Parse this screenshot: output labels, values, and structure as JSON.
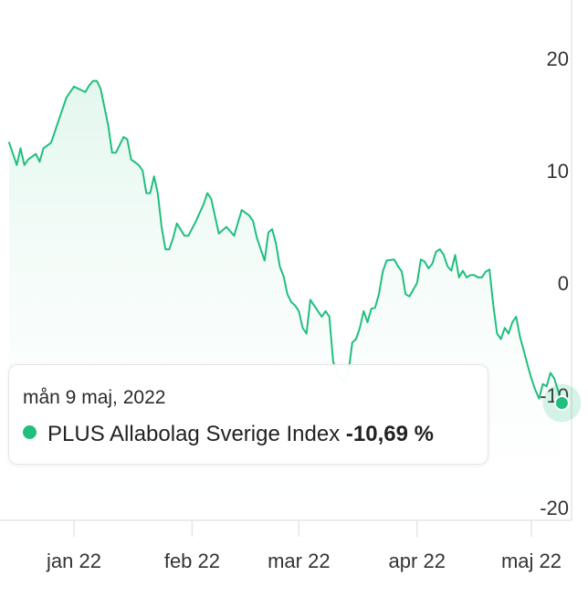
{
  "colors": {
    "line": "#20bf7e",
    "area_top": "#e3f7ee",
    "grid": "#e6e6e6",
    "axis_text": "#333333"
  },
  "tooltip": {
    "date": "mån 9 maj, 2022",
    "series_name": "PLUS Allabolag Sverige Index",
    "value": "-10,69 %"
  },
  "chart_data": {
    "type": "area",
    "ylim": [
      -20,
      20
    ],
    "y_ticks": [
      {
        "value": 20,
        "label": "20"
      },
      {
        "value": 10,
        "label": "10"
      },
      {
        "value": 0,
        "label": "0"
      },
      {
        "value": -10,
        "label": "-10"
      },
      {
        "value": -20,
        "label": "-20"
      }
    ],
    "x_ticks": [
      {
        "date": "2022-01-01",
        "label": "jan 22"
      },
      {
        "date": "2022-02-01",
        "label": "feb 22"
      },
      {
        "date": "2022-03-01",
        "label": "mar 22"
      },
      {
        "date": "2022-04-01",
        "label": "apr 22"
      },
      {
        "date": "2022-05-01",
        "label": "maj 22"
      }
    ],
    "series": [
      {
        "name": "PLUS Allabolag Sverige Index",
        "points": [
          [
            "2021-12-15",
            12.5
          ],
          [
            "2021-12-17",
            10.5
          ],
          [
            "2021-12-18",
            12.0
          ],
          [
            "2021-12-19",
            10.5
          ],
          [
            "2021-12-20",
            11.0
          ],
          [
            "2021-12-22",
            11.5
          ],
          [
            "2021-12-23",
            10.8
          ],
          [
            "2021-12-24",
            12.0
          ],
          [
            "2021-12-26",
            12.5
          ],
          [
            "2021-12-28",
            14.5
          ],
          [
            "2021-12-30",
            16.5
          ],
          [
            "2022-01-01",
            17.5
          ],
          [
            "2022-01-04",
            17.0
          ],
          [
            "2022-01-05",
            17.6
          ],
          [
            "2022-01-06",
            18.0
          ],
          [
            "2022-01-07",
            18.0
          ],
          [
            "2022-01-08",
            17.3
          ],
          [
            "2022-01-10",
            14.0
          ],
          [
            "2022-01-11",
            11.6
          ],
          [
            "2022-01-12",
            11.6
          ],
          [
            "2022-01-14",
            13.0
          ],
          [
            "2022-01-15",
            12.8
          ],
          [
            "2022-01-16",
            11.0
          ],
          [
            "2022-01-18",
            10.5
          ],
          [
            "2022-01-19",
            10.0
          ],
          [
            "2022-01-20",
            8.0
          ],
          [
            "2022-01-21",
            8.0
          ],
          [
            "2022-01-22",
            9.5
          ],
          [
            "2022-01-23",
            8.0
          ],
          [
            "2022-01-24",
            5.0
          ],
          [
            "2022-01-25",
            3.0
          ],
          [
            "2022-01-26",
            3.0
          ],
          [
            "2022-01-27",
            4.0
          ],
          [
            "2022-01-28",
            5.3
          ],
          [
            "2022-01-30",
            4.2
          ],
          [
            "2022-01-31",
            4.2
          ],
          [
            "2022-02-02",
            5.5
          ],
          [
            "2022-02-04",
            7.0
          ],
          [
            "2022-02-05",
            8.0
          ],
          [
            "2022-02-06",
            7.5
          ],
          [
            "2022-02-08",
            4.4
          ],
          [
            "2022-02-10",
            5.0
          ],
          [
            "2022-02-12",
            4.2
          ],
          [
            "2022-02-14",
            6.5
          ],
          [
            "2022-02-16",
            6.0
          ],
          [
            "2022-02-17",
            5.5
          ],
          [
            "2022-02-18",
            4.0
          ],
          [
            "2022-02-20",
            2.0
          ],
          [
            "2022-02-21",
            4.5
          ],
          [
            "2022-02-22",
            4.8
          ],
          [
            "2022-02-23",
            3.5
          ],
          [
            "2022-02-24",
            1.5
          ],
          [
            "2022-02-25",
            0.6
          ],
          [
            "2022-02-26",
            -1.0
          ],
          [
            "2022-02-27",
            -1.7
          ],
          [
            "2022-02-28",
            -2.0
          ],
          [
            "2022-03-01",
            -2.5
          ],
          [
            "2022-03-02",
            -4.0
          ],
          [
            "2022-03-03",
            -4.5
          ],
          [
            "2022-03-04",
            -1.5
          ],
          [
            "2022-03-05",
            -2.0
          ],
          [
            "2022-03-06",
            -2.5
          ],
          [
            "2022-03-07",
            -3.0
          ],
          [
            "2022-03-08",
            -2.5
          ],
          [
            "2022-03-09",
            -3.0
          ],
          [
            "2022-03-10",
            -7.0
          ],
          [
            "2022-03-11",
            -8.0
          ],
          [
            "2022-03-12",
            -8.5
          ],
          [
            "2022-03-13",
            -8.8
          ],
          [
            "2022-03-14",
            -8.0
          ],
          [
            "2022-03-15",
            -5.3
          ],
          [
            "2022-03-16",
            -5.0
          ],
          [
            "2022-03-17",
            -4.0
          ],
          [
            "2022-03-18",
            -2.5
          ],
          [
            "2022-03-19",
            -3.5
          ],
          [
            "2022-03-20",
            -2.3
          ],
          [
            "2022-03-21",
            -2.2
          ],
          [
            "2022-03-22",
            -1.0
          ],
          [
            "2022-03-23",
            1.0
          ],
          [
            "2022-03-24",
            2.0
          ],
          [
            "2022-03-26",
            2.1
          ],
          [
            "2022-03-27",
            1.5
          ],
          [
            "2022-03-28",
            1.0
          ],
          [
            "2022-03-29",
            -1.0
          ],
          [
            "2022-03-30",
            -1.2
          ],
          [
            "2022-04-01",
            0.0
          ],
          [
            "2022-04-02",
            2.1
          ],
          [
            "2022-04-03",
            1.9
          ],
          [
            "2022-04-04",
            1.3
          ],
          [
            "2022-04-05",
            1.7
          ],
          [
            "2022-04-06",
            2.8
          ],
          [
            "2022-04-07",
            3.0
          ],
          [
            "2022-04-08",
            2.5
          ],
          [
            "2022-04-09",
            1.5
          ],
          [
            "2022-04-10",
            1.1
          ],
          [
            "2022-04-11",
            2.5
          ],
          [
            "2022-04-12",
            0.5
          ],
          [
            "2022-04-13",
            1.1
          ],
          [
            "2022-04-14",
            0.5
          ],
          [
            "2022-04-15",
            0.7
          ],
          [
            "2022-04-16",
            0.7
          ],
          [
            "2022-04-17",
            0.5
          ],
          [
            "2022-04-18",
            0.5
          ],
          [
            "2022-04-19",
            1.0
          ],
          [
            "2022-04-20",
            1.2
          ],
          [
            "2022-04-21",
            -2.0
          ],
          [
            "2022-04-22",
            -4.5
          ],
          [
            "2022-04-23",
            -5.0
          ],
          [
            "2022-04-24",
            -4.0
          ],
          [
            "2022-04-25",
            -4.5
          ],
          [
            "2022-04-26",
            -3.5
          ],
          [
            "2022-04-27",
            -3.0
          ],
          [
            "2022-04-28",
            -4.8
          ],
          [
            "2022-04-29",
            -6.0
          ],
          [
            "2022-04-30",
            -7.3
          ],
          [
            "2022-05-01",
            -8.5
          ],
          [
            "2022-05-02",
            -9.5
          ],
          [
            "2022-05-03",
            -10.3
          ],
          [
            "2022-05-04",
            -9.0
          ],
          [
            "2022-05-05",
            -9.2
          ],
          [
            "2022-05-06",
            -8.0
          ],
          [
            "2022-05-07",
            -8.5
          ],
          [
            "2022-05-09",
            -10.69
          ]
        ]
      }
    ],
    "highlight": {
      "date": "2022-05-09",
      "value": -10.69
    }
  }
}
